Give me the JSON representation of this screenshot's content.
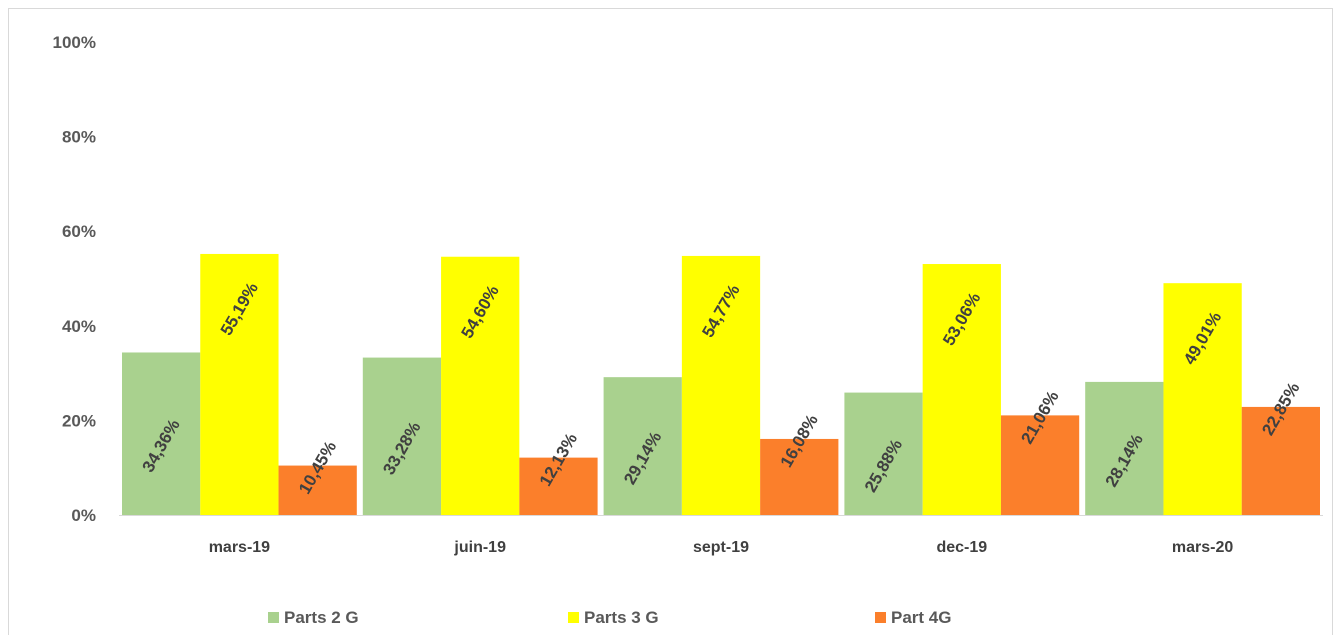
{
  "chart_data": {
    "type": "bar",
    "title": "",
    "xlabel": "",
    "ylabel": "",
    "categories": [
      "mars-19",
      "juin-19",
      "sept-19",
      "dec-19",
      "mars-20"
    ],
    "series": [
      {
        "name": "Parts 2 G",
        "color": "#a9d18e",
        "values": [
          34.36,
          33.28,
          29.14,
          25.88,
          28.14
        ],
        "labels": [
          "34,36%",
          "33,28%",
          "29,14%",
          "25,88%",
          "28,14%"
        ]
      },
      {
        "name": "Parts 3 G",
        "color": "#ffff00",
        "values": [
          55.19,
          54.6,
          54.77,
          53.06,
          49.01
        ],
        "labels": [
          "55,19%",
          "54,60%",
          "54,77%",
          "53,06%",
          "49,01%"
        ]
      },
      {
        "name": "Part 4G",
        "color": "#fb7f2b",
        "values": [
          10.45,
          12.13,
          16.08,
          21.06,
          22.85
        ],
        "labels": [
          "10,45%",
          "12,13%",
          "16,08%",
          "21,06%",
          "22,85%"
        ]
      }
    ],
    "ylim": [
      0,
      100
    ],
    "yticks": [
      0,
      20,
      40,
      60,
      80,
      100
    ],
    "ytick_labels": [
      "0%",
      "20%",
      "40%",
      "60%",
      "80%",
      "100%"
    ],
    "grid": false,
    "legend_position": "bottom"
  }
}
